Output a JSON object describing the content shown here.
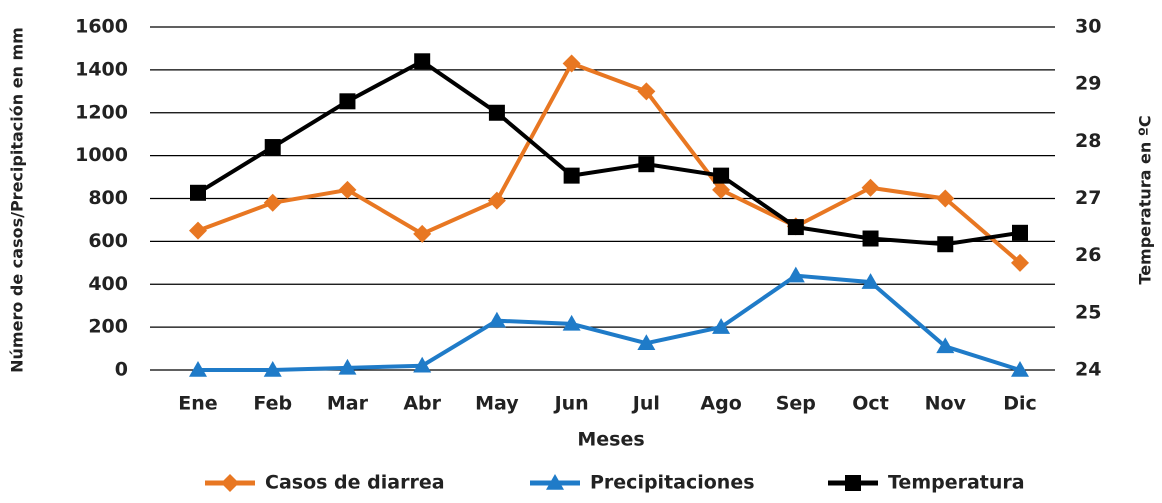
{
  "chart_data": {
    "type": "line",
    "x_label": "Meses",
    "y_label": "Número de casos/Precipitación en mm",
    "y2_label": "Temperatura en ºC",
    "categories": [
      "Ene",
      "Feb",
      "Mar",
      "Abr",
      "May",
      "Jun",
      "Jul",
      "Ago",
      "Sep",
      "Oct",
      "Nov",
      "Dic"
    ],
    "series": [
      {
        "name": "Casos de diarrea",
        "color": "#e87722",
        "marker": "diamond",
        "values": [
          650,
          780,
          840,
          635,
          790,
          1430,
          1300,
          840,
          670,
          850,
          800,
          500
        ]
      },
      {
        "name": "Precipitaciones",
        "color": "#1f7bc8",
        "marker": "triangle",
        "values": [
          0,
          0,
          10,
          20,
          230,
          215,
          125,
          200,
          440,
          410,
          110,
          0
        ]
      },
      {
        "name": "Temperatura",
        "color": "#000000",
        "marker": "square",
        "axis": "y2",
        "values": [
          27.1,
          27.9,
          28.7,
          29.4,
          28.5,
          27.4,
          27.6,
          27.4,
          26.5,
          26.3,
          26.2,
          26.4
        ]
      }
    ],
    "ylim": [
      0,
      1600
    ],
    "yticks": [
      0,
      200,
      400,
      600,
      800,
      1000,
      1200,
      1400,
      1600
    ],
    "y2lim": [
      24,
      30
    ],
    "y2ticks": [
      24,
      25,
      26,
      27,
      28,
      29,
      30
    ],
    "grid": true,
    "legend": "bottom"
  }
}
